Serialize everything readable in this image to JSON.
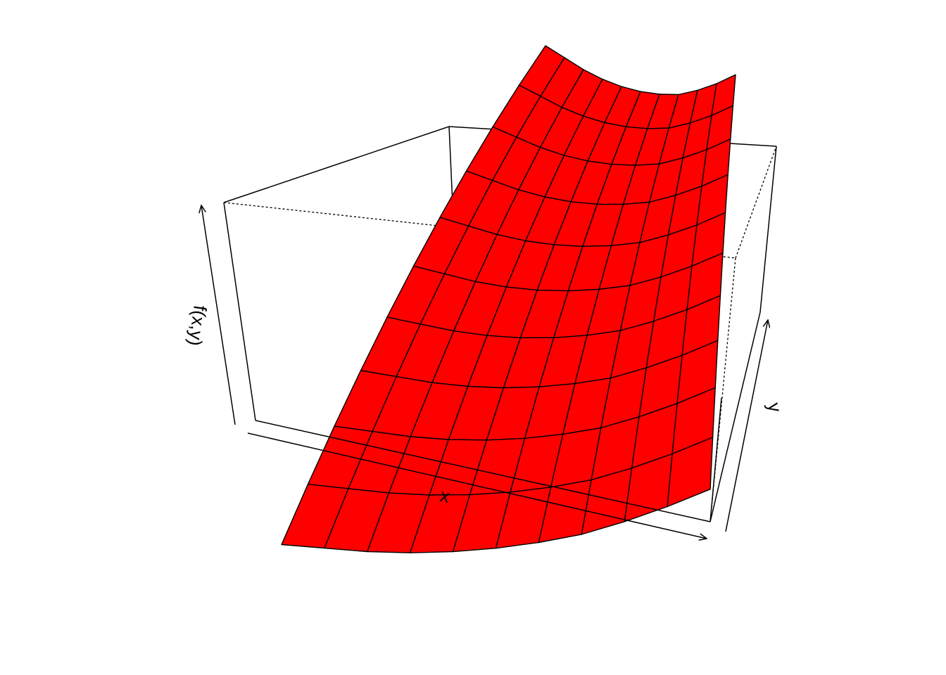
{
  "chart_data": {
    "type": "surface",
    "title": "",
    "xlabel": "x",
    "ylabel": "y",
    "zlabel": "f(x,y)",
    "surface_color": "#ff0000",
    "border_color": "#000000",
    "grid_lines": 10,
    "rows": [
      [
        1.0,
        0.94,
        0.88,
        0.83,
        0.79,
        0.76,
        0.74,
        0.73,
        0.74,
        0.76,
        0.79
      ],
      [
        0.98,
        0.92,
        0.86,
        0.81,
        0.77,
        0.74,
        0.72,
        0.71,
        0.72,
        0.74,
        0.77
      ],
      [
        0.95,
        0.89,
        0.83,
        0.78,
        0.74,
        0.71,
        0.69,
        0.68,
        0.69,
        0.71,
        0.74
      ],
      [
        0.91,
        0.85,
        0.79,
        0.74,
        0.7,
        0.67,
        0.65,
        0.64,
        0.65,
        0.67,
        0.7
      ],
      [
        0.86,
        0.8,
        0.74,
        0.69,
        0.65,
        0.62,
        0.6,
        0.59,
        0.6,
        0.62,
        0.65
      ],
      [
        0.8,
        0.74,
        0.68,
        0.63,
        0.59,
        0.56,
        0.54,
        0.53,
        0.54,
        0.56,
        0.59
      ],
      [
        0.73,
        0.67,
        0.61,
        0.56,
        0.52,
        0.49,
        0.47,
        0.46,
        0.47,
        0.49,
        0.52
      ],
      [
        0.65,
        0.59,
        0.53,
        0.48,
        0.44,
        0.41,
        0.39,
        0.38,
        0.39,
        0.41,
        0.44
      ],
      [
        0.56,
        0.5,
        0.44,
        0.39,
        0.35,
        0.32,
        0.3,
        0.29,
        0.3,
        0.32,
        0.35
      ],
      [
        0.46,
        0.4,
        0.34,
        0.29,
        0.25,
        0.22,
        0.2,
        0.19,
        0.2,
        0.22,
        0.25
      ],
      [
        0.35,
        0.29,
        0.23,
        0.18,
        0.14,
        0.11,
        0.09,
        0.08,
        0.09,
        0.11,
        0.14
      ]
    ]
  }
}
